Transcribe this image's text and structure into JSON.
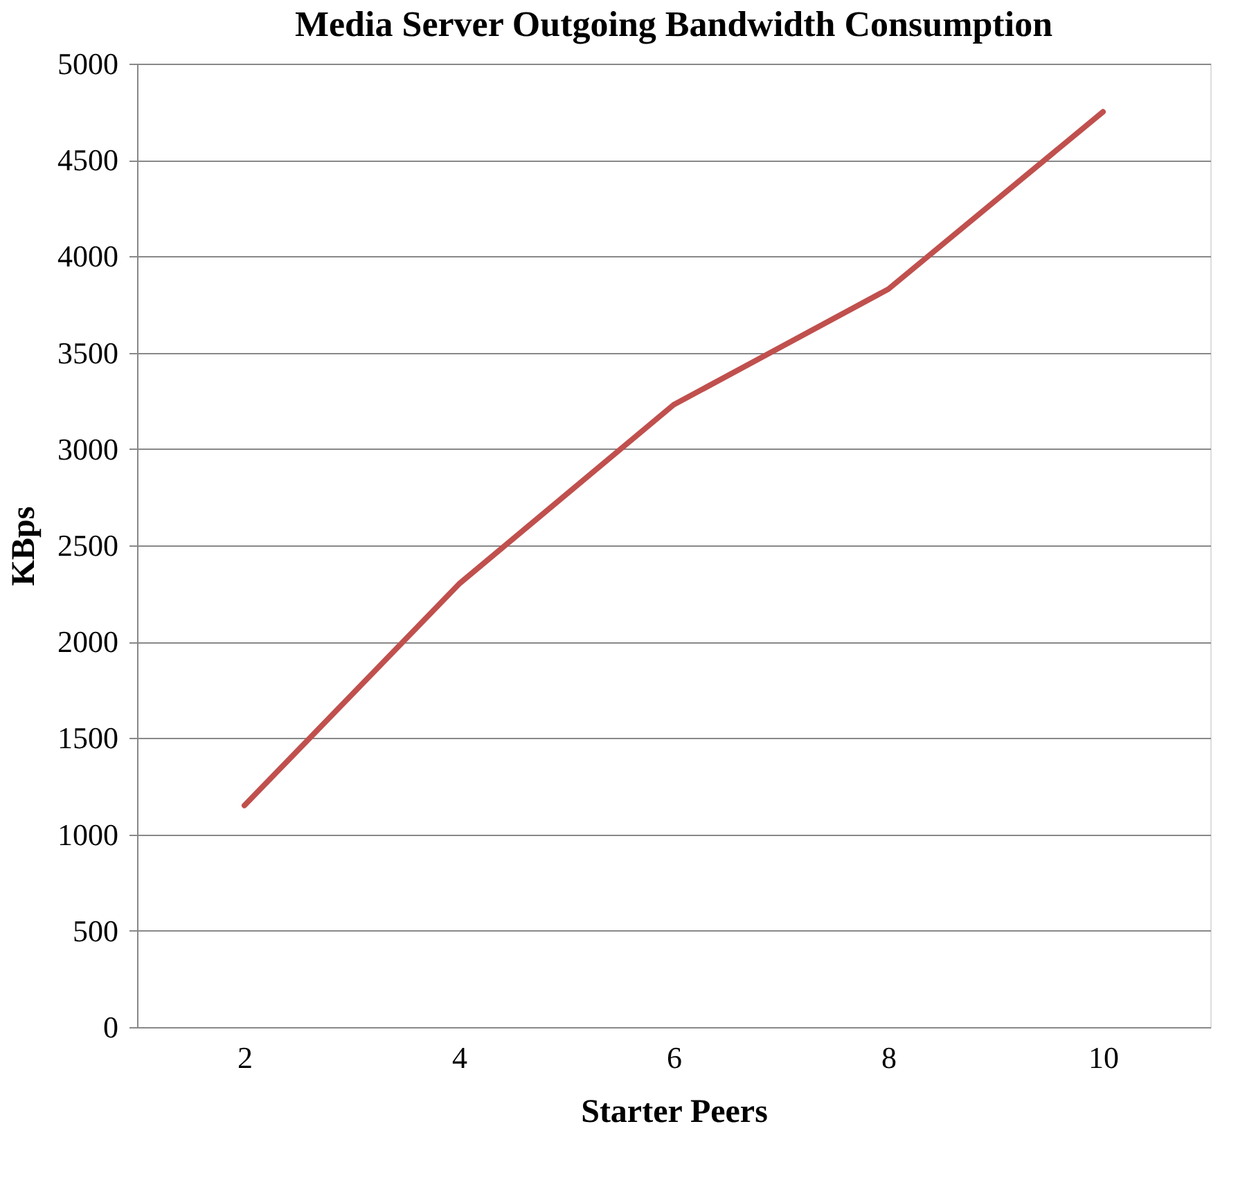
{
  "chart_data": {
    "type": "line",
    "title": "Media Server Outgoing Bandwidth Consumption",
    "xlabel": "Starter Peers",
    "ylabel": "KBps",
    "categories": [
      "2",
      "4",
      "6",
      "8",
      "10"
    ],
    "series": [
      {
        "color": "#c0504d",
        "values": [
          1150,
          2300,
          3230,
          3830,
          4750
        ]
      }
    ],
    "ylim": [
      0,
      5000
    ],
    "yticks": [
      0,
      500,
      1000,
      1500,
      2000,
      2500,
      3000,
      3500,
      4000,
      4500,
      5000
    ],
    "grid": "y",
    "legend": false,
    "marker": "none",
    "line_style": "solid"
  }
}
